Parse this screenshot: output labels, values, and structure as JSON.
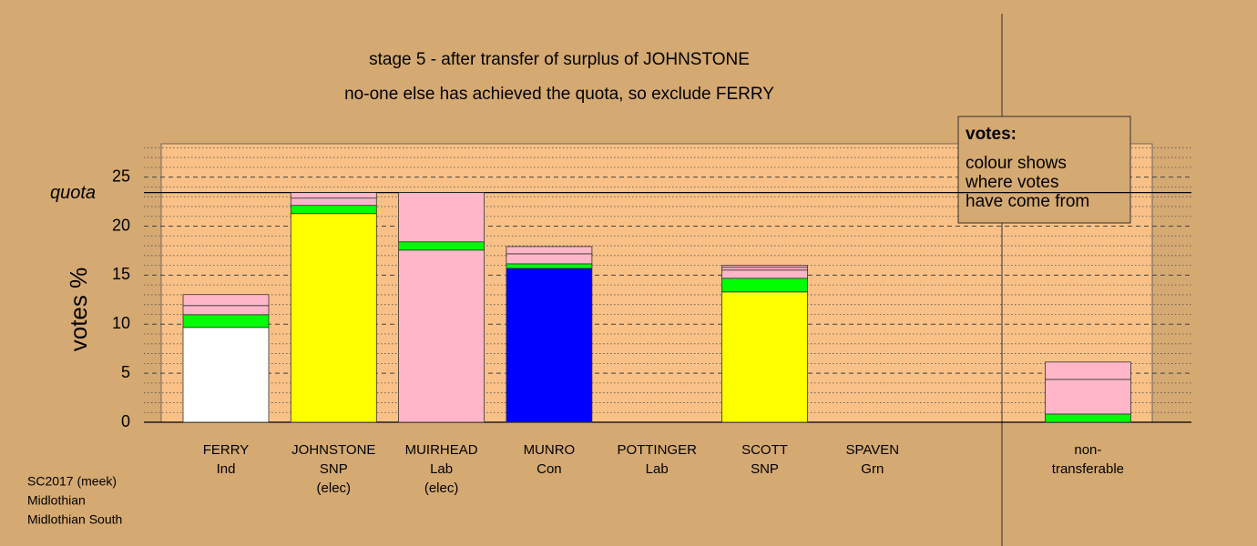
{
  "chart_data": {
    "type": "stacked_bar",
    "title": "stage 5 - after transfer of surplus of JOHNSTONE",
    "subtitle": "no-one else has achieved the quota, so exclude FERRY",
    "ylabel": "votes %",
    "categories": [
      [
        "FERRY",
        "Ind"
      ],
      [
        "JOHNSTONE",
        "SNP",
        "(elec)"
      ],
      [
        "MUIRHEAD",
        "Lab",
        "(elec)"
      ],
      [
        "MUNRO",
        "Con"
      ],
      [
        "POTTINGER",
        "Lab"
      ],
      [
        "SCOTT",
        "SNP"
      ],
      [
        "SPAVEN",
        "Grn"
      ],
      [
        "non-",
        "transferable"
      ]
    ],
    "series": [
      {
        "colors": [
          "#ffffff",
          "#ffff00",
          "#ffb6c8",
          "#0000ff",
          "#ffb6c8",
          "#ffff00",
          "#00ff00",
          "#ffffff"
        ],
        "values": [
          9.67,
          21.28,
          17.56,
          15.7,
          0,
          13.29,
          0,
          0
        ]
      },
      {
        "color": "#00ff00",
        "values": [
          1.3,
          0.84,
          0.84,
          0.46,
          0,
          1.39,
          0,
          0.84
        ]
      },
      {
        "color": "#ffb6c8",
        "values": [
          0.93,
          0.74,
          5.02,
          1.02,
          0,
          0.84,
          0,
          3.53
        ]
      },
      {
        "color": "#ffb6c8",
        "values": [
          1.12,
          0.56,
          0,
          0.74,
          0,
          0.28,
          0,
          1.77
        ]
      },
      {
        "color": "#ffb6c8",
        "values": [
          0,
          0,
          0,
          0,
          0,
          0.19,
          0,
          0
        ]
      }
    ],
    "quota": {
      "label": "quota",
      "value": 23.42
    },
    "ylim": [
      0,
      28.4
    ],
    "yticks": [
      0,
      5,
      10,
      15,
      20,
      25
    ],
    "minor_yticks": [
      1,
      2,
      3,
      4,
      6,
      7,
      8,
      9,
      11,
      12,
      13,
      14,
      16,
      17,
      18,
      19,
      21,
      22,
      23,
      24,
      26,
      27,
      28
    ],
    "grid": true,
    "legend_box": {
      "title": "votes:",
      "lines": [
        "colour shows",
        "where votes",
        "have come from"
      ]
    },
    "footer": [
      "SC2017 (meek)",
      "Midlothian",
      "Midlothian South"
    ]
  }
}
